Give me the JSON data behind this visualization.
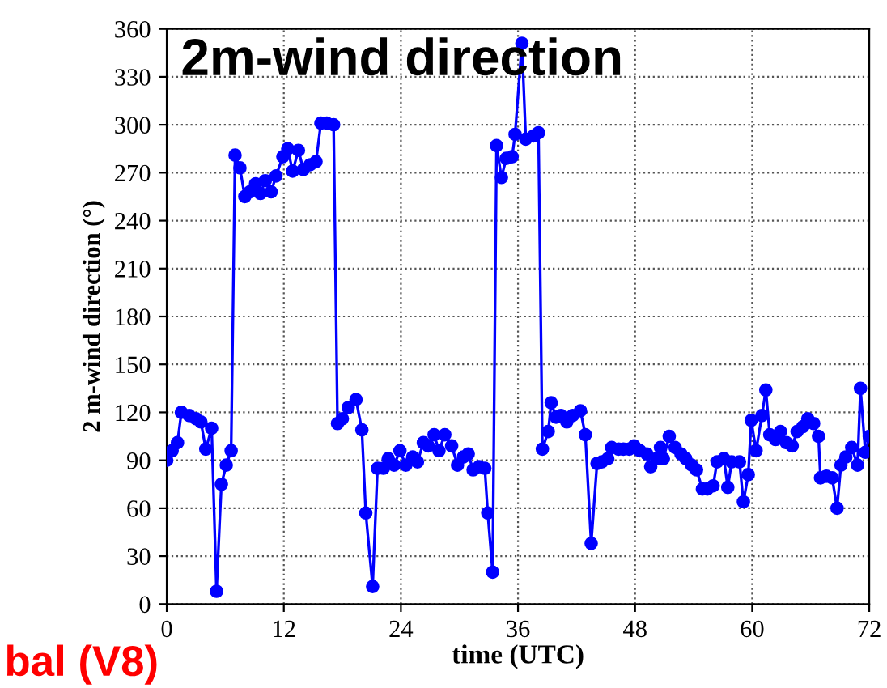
{
  "chart_data": {
    "type": "line",
    "title": "2m-wind direction",
    "xlabel": "time (UTC)",
    "ylabel": "2 m-wind direction (°)",
    "annotations": [
      "bal (V8)"
    ],
    "xlim": [
      0,
      72
    ],
    "xticks": [
      0,
      12,
      24,
      36,
      48,
      60,
      72
    ],
    "ylim": [
      0,
      360
    ],
    "yticks": [
      0,
      30,
      60,
      90,
      120,
      150,
      180,
      210,
      240,
      270,
      300,
      330,
      360
    ],
    "grid": true,
    "marker": "circle",
    "line_style": "solid",
    "series": [
      {
        "color": "#0000ff",
        "x": [
          0,
          0.55,
          1.1,
          1.5,
          2.3,
          3.0,
          3.5,
          4.0,
          4.6,
          5.1,
          5.6,
          6.1,
          6.6,
          7.0,
          7.5,
          8.0,
          8.5,
          9.1,
          9.6,
          10.1,
          10.7,
          11.2,
          11.9,
          12.4,
          12.9,
          13.5,
          14.0,
          14.7,
          15.3,
          15.8,
          16.4,
          17.1,
          17.5,
          18.0,
          18.6,
          19.4,
          20.0,
          20.4,
          21.1,
          21.6,
          22.2,
          22.7,
          23.3,
          23.9,
          24.5,
          25.2,
          25.7,
          26.3,
          26.8,
          27.4,
          27.9,
          28.5,
          29.2,
          29.8,
          30.4,
          30.9,
          31.4,
          32.0,
          32.6,
          32.9,
          33.4,
          33.8,
          34.3,
          34.8,
          35.4,
          35.7,
          36.4,
          36.8,
          37.6,
          38.1,
          38.5,
          39.1,
          39.4,
          39.9,
          40.4,
          41.0,
          41.6,
          42.4,
          42.9,
          43.5,
          44.1,
          44.6,
          45.2,
          45.6,
          46.3,
          46.8,
          47.4,
          47.9,
          48.5,
          49.2,
          49.6,
          50.2,
          50.6,
          50.9,
          51.5,
          52.1,
          52.7,
          53.2,
          53.8,
          54.3,
          54.9,
          55.4,
          56.0,
          56.4,
          57.1,
          57.5,
          57.9,
          58.7,
          59.1,
          59.6,
          59.9,
          60.4,
          61.0,
          61.4,
          61.8,
          62.4,
          62.9,
          63.5,
          64.1,
          64.6,
          65.2,
          65.7,
          66.3,
          66.8,
          67.0,
          67.6,
          68.2,
          68.7,
          69.1,
          69.6,
          70.2,
          70.8,
          71.1,
          71.6,
          72.0
        ],
        "values": [
          90,
          96,
          101,
          120,
          118,
          116,
          114,
          97,
          110,
          8,
          75,
          87,
          96,
          281,
          273,
          255,
          258,
          263,
          257,
          265,
          258,
          268,
          280,
          285,
          271,
          284,
          272,
          275,
          277,
          301,
          301,
          300,
          113,
          116,
          123,
          128,
          109,
          57,
          11,
          85,
          85,
          91,
          87,
          96,
          87,
          92,
          89,
          101,
          99,
          106,
          96,
          106,
          99,
          87,
          92,
          94,
          84,
          86,
          85,
          57,
          20,
          287,
          267,
          279,
          280,
          294,
          351,
          291,
          293,
          295,
          97,
          108,
          126,
          117,
          118,
          114,
          118,
          121,
          106,
          38,
          88,
          89,
          91,
          98,
          97,
          97,
          97,
          99,
          96,
          94,
          86,
          91,
          98,
          91,
          105,
          98,
          94,
          91,
          87,
          84,
          72,
          72,
          74,
          89,
          91,
          73,
          89,
          89,
          64,
          81,
          115,
          96,
          118,
          134,
          106,
          103,
          108,
          101,
          99,
          108,
          111,
          116,
          113,
          105,
          79,
          80,
          79,
          60,
          87,
          92,
          98,
          87,
          135,
          95,
          105
        ]
      }
    ]
  }
}
